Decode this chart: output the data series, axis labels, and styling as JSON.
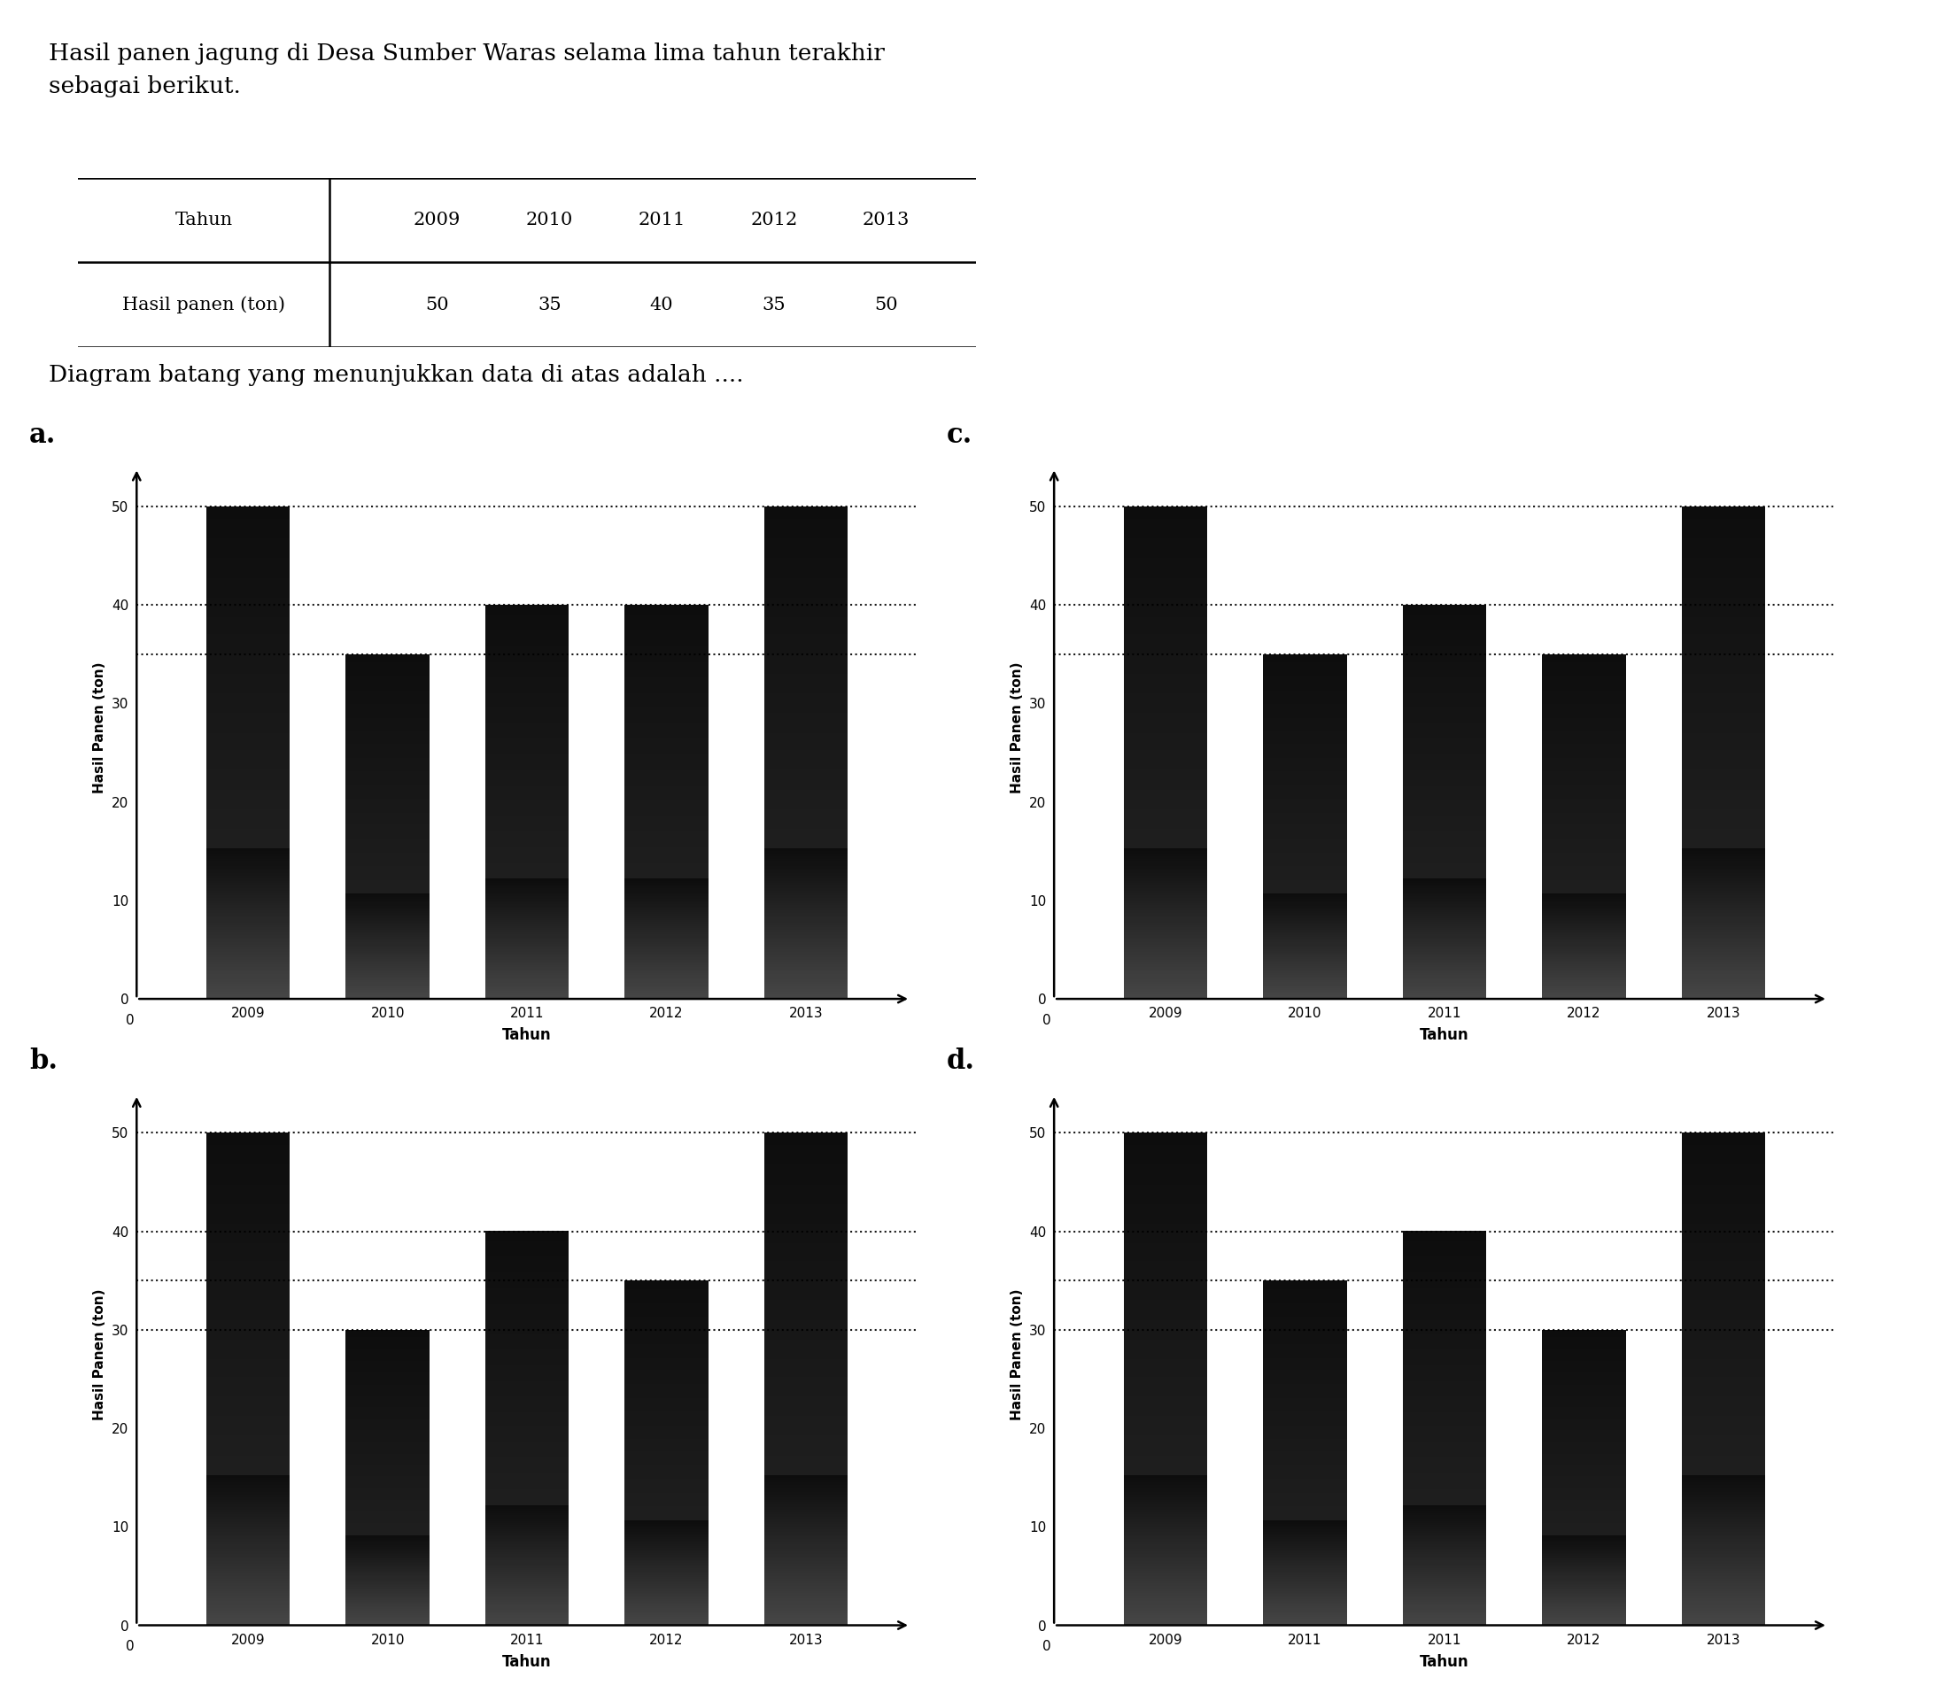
{
  "title_text": "Hasil panen jagung di Desa Sumber Waras selama lima tahun terakhir\nsebagai berikut.",
  "question_text": "Diagram batang yang menunjukkan data di atas adalah ....",
  "table_header": [
    "Tahun",
    "2009",
    "2010",
    "2011",
    "2012",
    "2013"
  ],
  "table_row": [
    "Hasil panen (ton)",
    "50",
    "35",
    "40",
    "35",
    "50"
  ],
  "charts": [
    {
      "label": "a.",
      "years": [
        "2009",
        "2010",
        "2011",
        "2012",
        "2013"
      ],
      "values": [
        50,
        35,
        40,
        40,
        50
      ],
      "yticks": [
        0,
        10,
        20,
        30,
        40,
        50
      ],
      "ymax": 55,
      "dotted_lines": [
        50,
        40,
        35
      ]
    },
    {
      "label": "b.",
      "years": [
        "2009",
        "2010",
        "2011",
        "2012",
        "2013"
      ],
      "values": [
        50,
        30,
        40,
        35,
        50
      ],
      "yticks": [
        0,
        10,
        20,
        30,
        40,
        50
      ],
      "ymax": 55,
      "dotted_lines": [
        50,
        40,
        35,
        30
      ]
    },
    {
      "label": "c.",
      "years": [
        "2009",
        "2010",
        "2011",
        "2012",
        "2013"
      ],
      "values": [
        50,
        35,
        40,
        35,
        50
      ],
      "yticks": [
        0,
        10,
        20,
        30,
        40,
        50
      ],
      "ymax": 55,
      "dotted_lines": [
        50,
        40,
        35
      ]
    },
    {
      "label": "d.",
      "years": [
        "2009",
        "2011",
        "2011",
        "2012",
        "2013"
      ],
      "values": [
        50,
        35,
        40,
        30,
        50
      ],
      "yticks": [
        0,
        10,
        20,
        30,
        40,
        50
      ],
      "ymax": 55,
      "dotted_lines": [
        50,
        40,
        35,
        30
      ]
    }
  ],
  "ylabel": "Hasil Panen (ton)",
  "xlabel": "Tahun",
  "bar_width": 0.6,
  "background_color": "#ffffff",
  "text_color": "#000000"
}
